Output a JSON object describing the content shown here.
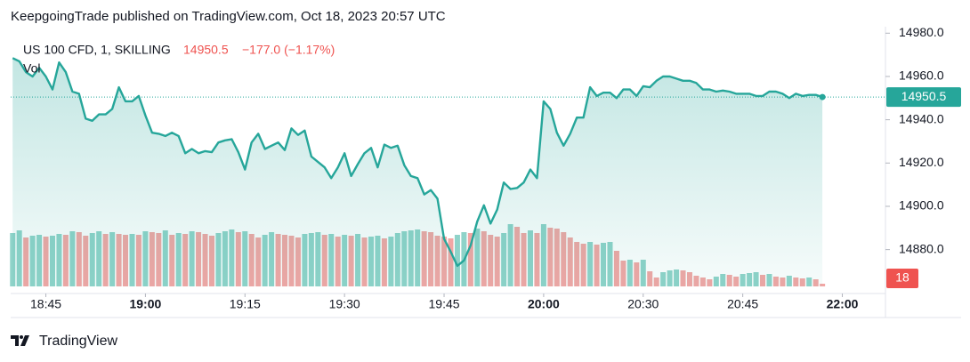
{
  "header": {
    "text": "KeepgoingTrade published on TradingView.com, Oct 18, 2023 20:57 UTC"
  },
  "chart_data": {
    "type": "line",
    "change": "−177.0 (−1.17%)",
    "series": [
      {
        "name": "US 100 CFD, 1, SKILLING",
        "color": "#26a69a",
        "values": [
          14968.5,
          14967,
          14962,
          14960,
          14964,
          14960,
          14954,
          14966.5,
          14962,
          14953,
          14952,
          14940.5,
          14939.5,
          14942.5,
          14942.5,
          14945,
          14955,
          14948.5,
          14948.5,
          14951,
          14942,
          14934,
          14933.5,
          14932.5,
          14934,
          14932.5,
          14924.5,
          14926.5,
          14924.5,
          14925.5,
          14925,
          14929.5,
          14930.5,
          14931,
          14925,
          14917,
          14929.5,
          14933.5,
          14926.5,
          14928,
          14929.5,
          14926,
          14936,
          14933,
          14935,
          14923,
          14920.5,
          14918,
          14913,
          14918,
          14924.5,
          14914,
          14919.5,
          14924.5,
          14927,
          14918,
          14928.5,
          14927,
          14928,
          14919,
          14914,
          14913,
          14905.5,
          14907.5,
          14903.5,
          14885,
          14879,
          14872.5,
          14875,
          14882,
          14893,
          14900.5,
          14892,
          14898.5,
          14911,
          14908,
          14908.5,
          14911,
          14917,
          14913,
          14948.5,
          14945,
          14934,
          14928,
          14933.5,
          14941,
          14941,
          14955,
          14951,
          14952.5,
          14952.5,
          14950,
          14954,
          14954,
          14951,
          14955.5,
          14955,
          14958,
          14960,
          14960,
          14959,
          14958,
          14958,
          14957,
          14954,
          14954,
          14953,
          14953.5,
          14953,
          14952,
          14952,
          14952,
          14951,
          14951,
          14953,
          14953,
          14952,
          14950,
          14952,
          14951,
          14951.5,
          14951.5,
          14950.5
        ]
      },
      {
        "name": "Vol",
        "axis": "y2",
        "up_color": "#8fd3c9",
        "down_color": "#f2a6a4",
        "values": [
          360,
          378,
          330,
          342,
          348,
          336,
          342,
          354,
          348,
          372,
          366,
          342,
          360,
          372,
          354,
          366,
          354,
          348,
          354,
          348,
          372,
          366,
          360,
          378,
          348,
          360,
          354,
          372,
          366,
          354,
          342,
          360,
          372,
          384,
          366,
          372,
          354,
          330,
          348,
          366,
          354,
          348,
          342,
          330,
          354,
          360,
          366,
          348,
          354,
          336,
          348,
          342,
          354,
          330,
          336,
          342,
          324,
          336,
          360,
          372,
          378,
          384,
          372,
          366,
          342,
          336,
          324,
          348,
          366,
          360,
          390,
          372,
          348,
          336,
          360,
          420,
          402,
          360,
          378,
          360,
          420,
          396,
          390,
          366,
          330,
          300,
          288,
          300,
          282,
          294,
          300,
          240,
          174,
          180,
          162,
          180,
          102,
          60,
          96,
          108,
          114,
          108,
          96,
          72,
          60,
          48,
          66,
          84,
          78,
          66,
          84,
          90,
          96,
          78,
          84,
          66,
          60,
          72,
          60,
          54,
          60,
          48,
          18
        ]
      }
    ],
    "ylim": [
      14863,
      14983
    ],
    "yticks": [
      {
        "value": 14880,
        "label": "14880.0"
      },
      {
        "value": 14900,
        "label": "14900.0"
      },
      {
        "value": 14920,
        "label": "14920.0"
      },
      {
        "value": 14940,
        "label": "14940.0"
      },
      {
        "value": 14960,
        "label": "14960.0"
      },
      {
        "value": 14980,
        "label": "14980.0"
      }
    ],
    "y2lim": [
      0,
      600
    ],
    "xlim": [
      -0.3,
      131.5
    ],
    "xticks": [
      {
        "value": 5,
        "label": "18:45"
      },
      {
        "value": 20,
        "label": "19:00"
      },
      {
        "value": 35,
        "label": "19:15"
      },
      {
        "value": 50,
        "label": "19:30"
      },
      {
        "value": 65,
        "label": "19:45"
      },
      {
        "value": 80,
        "label": "20:00"
      },
      {
        "value": 95,
        "label": "20:30"
      },
      {
        "value": 110,
        "label": "20:45"
      },
      {
        "value": 125,
        "label": "22:00"
      }
    ]
  },
  "footer": {
    "brand": "TradingView"
  }
}
